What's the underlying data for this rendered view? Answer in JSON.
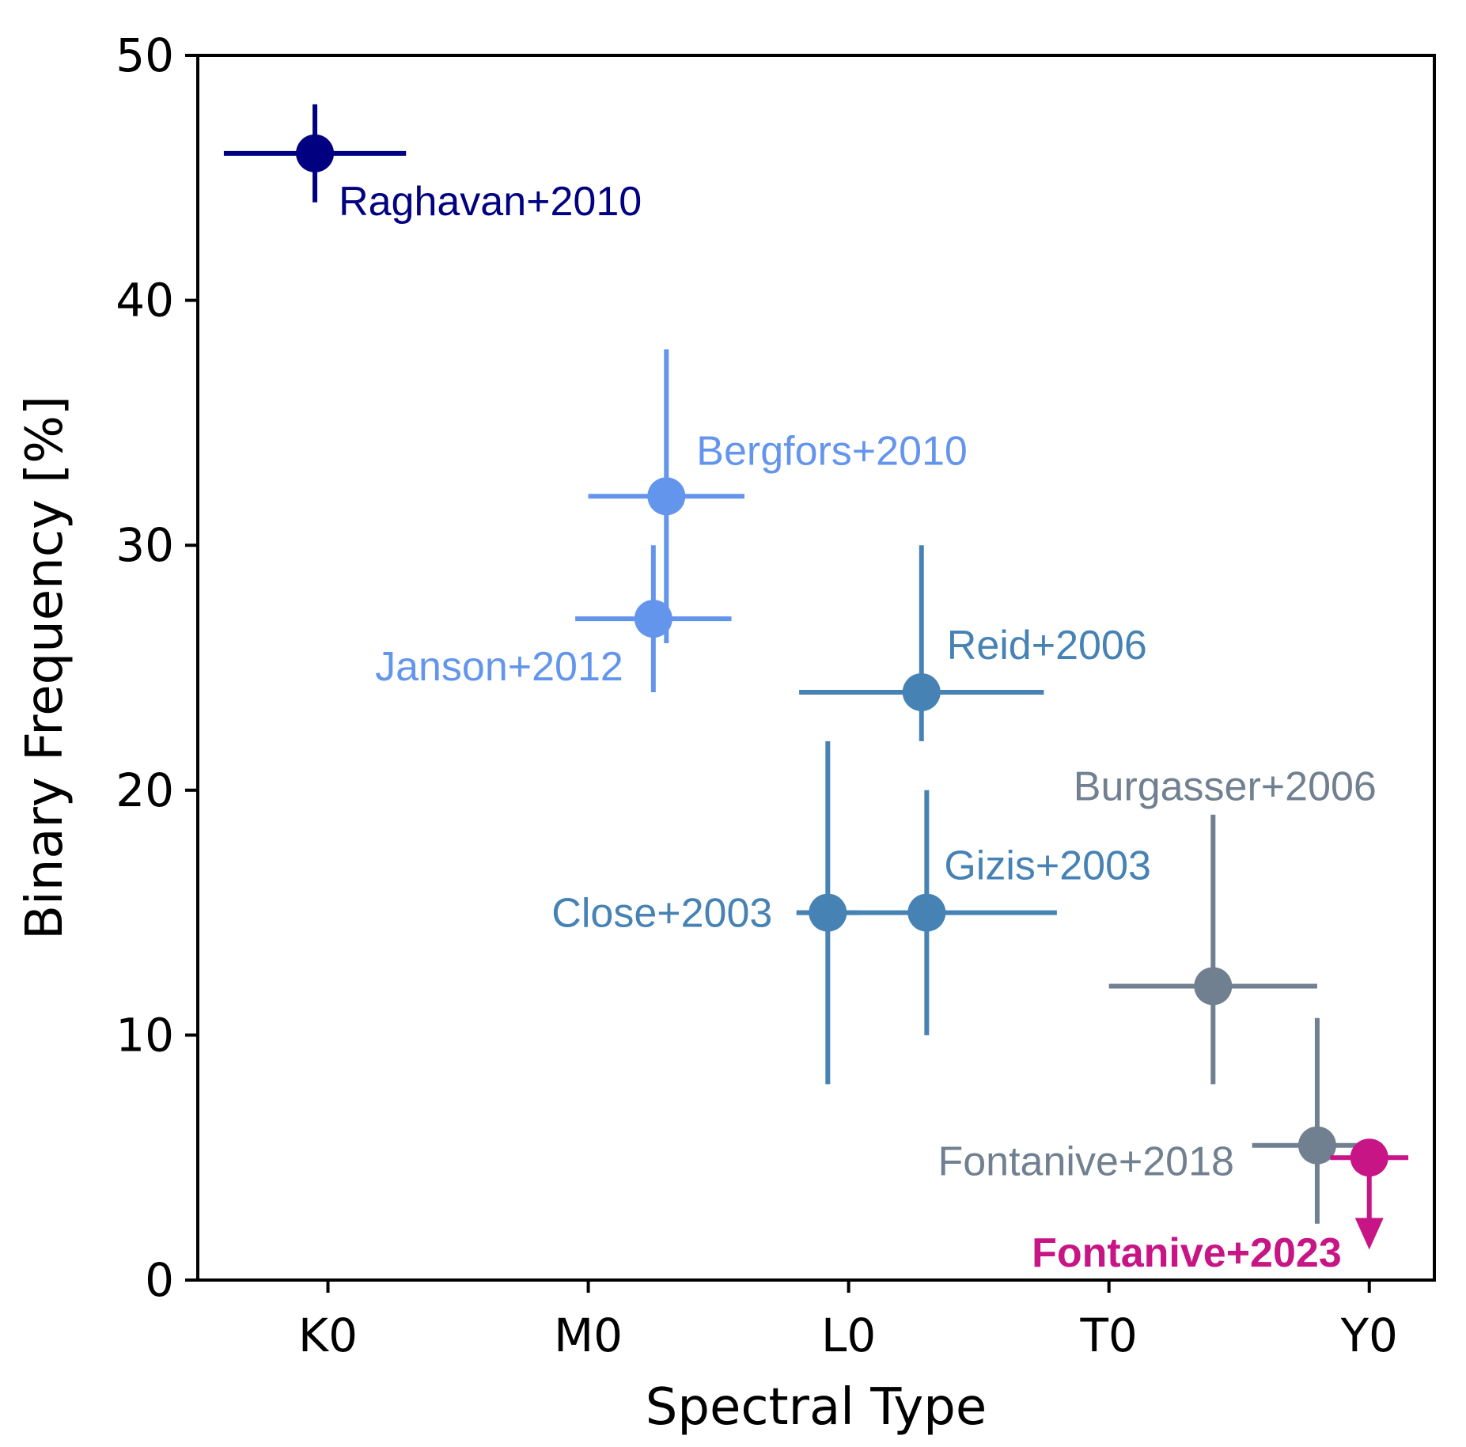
{
  "chart_data": {
    "type": "scatter",
    "title": "",
    "xlabel": "Spectral Type",
    "ylabel": "Binary Frequency [%]",
    "xlim": [
      -5,
      42.5
    ],
    "ylim": [
      0,
      50
    ],
    "x_ticks": [
      {
        "value": 0,
        "label": "K0"
      },
      {
        "value": 10,
        "label": "M0"
      },
      {
        "value": 20,
        "label": "L0"
      },
      {
        "value": 30,
        "label": "T0"
      },
      {
        "value": 40,
        "label": "Y0"
      }
    ],
    "y_ticks": [
      {
        "value": 0,
        "label": "0"
      },
      {
        "value": 10,
        "label": "10"
      },
      {
        "value": 20,
        "label": "20"
      },
      {
        "value": 30,
        "label": "30"
      },
      {
        "value": 40,
        "label": "40"
      },
      {
        "value": 50,
        "label": "50"
      }
    ],
    "grid": false,
    "legend": "none",
    "series": [
      {
        "name": "Raghavan+2010",
        "color": "#000080",
        "label_bold": false,
        "upper_limit": false,
        "x": -0.5,
        "y": 46,
        "xerr": [
          3.5,
          3.5
        ],
        "yerr": [
          2,
          2
        ]
      },
      {
        "name": "Bergfors+2010",
        "color": "#6495ed",
        "label_bold": false,
        "upper_limit": false,
        "x": 13,
        "y": 32,
        "xerr": [
          3,
          3
        ],
        "yerr": [
          6,
          6
        ]
      },
      {
        "name": "Janson+2012",
        "color": "#6495ed",
        "label_bold": false,
        "upper_limit": false,
        "x": 12.5,
        "y": 27,
        "xerr": [
          3,
          3
        ],
        "yerr": [
          3,
          3
        ]
      },
      {
        "name": "Reid+2006",
        "color": "#4682b4",
        "label_bold": false,
        "upper_limit": false,
        "x": 22.8,
        "y": 24,
        "xerr": [
          4.7,
          4.7
        ],
        "yerr": [
          2,
          6
        ]
      },
      {
        "name": "Close+2003",
        "color": "#4682b4",
        "label_bold": false,
        "upper_limit": false,
        "x": 19.2,
        "y": 15,
        "xerr": [
          1.2,
          1.2
        ],
        "yerr": [
          7,
          7
        ]
      },
      {
        "name": "Gizis+2003",
        "color": "#4682b4",
        "label_bold": false,
        "upper_limit": false,
        "x": 23,
        "y": 15,
        "xerr": [
          5,
          5
        ],
        "yerr": [
          5,
          5
        ]
      },
      {
        "name": "Burgasser+2006",
        "color": "#708090",
        "label_bold": false,
        "upper_limit": false,
        "x": 34,
        "y": 12,
        "xerr": [
          4,
          4
        ],
        "yerr": [
          4,
          7
        ]
      },
      {
        "name": "Fontanive+2018",
        "color": "#708090",
        "label_bold": false,
        "upper_limit": false,
        "x": 38,
        "y": 5.5,
        "xerr": [
          2.5,
          2.5
        ],
        "yerr": [
          3.2,
          5.2
        ]
      },
      {
        "name": "Fontanive+2023",
        "color": "#c71585",
        "label_bold": true,
        "upper_limit": true,
        "x": 40,
        "y": 5,
        "xerr": [
          1.5,
          1.5
        ],
        "yerr": [
          3.5,
          0
        ]
      }
    ]
  }
}
